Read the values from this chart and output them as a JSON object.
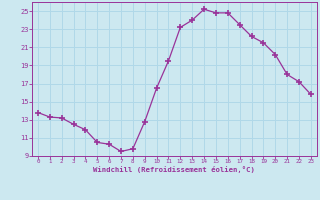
{
  "x": [
    0,
    1,
    2,
    3,
    4,
    5,
    6,
    7,
    8,
    9,
    10,
    11,
    12,
    13,
    14,
    15,
    16,
    17,
    18,
    19,
    20,
    21,
    22,
    23
  ],
  "y": [
    13.8,
    13.3,
    13.2,
    12.5,
    11.9,
    10.5,
    10.3,
    9.5,
    9.8,
    12.8,
    16.5,
    19.5,
    23.2,
    24.0,
    25.2,
    24.8,
    24.8,
    23.5,
    22.2,
    21.5,
    20.2,
    18.0,
    17.2,
    15.8
  ],
  "line_color": "#993399",
  "marker": "D",
  "marker_size": 2.5,
  "bg_color": "#cce8f0",
  "grid_color": "#b0d8e8",
  "axis_label_color": "#993399",
  "tick_color": "#993399",
  "xlabel": "Windchill (Refroidissement éolien,°C)",
  "xlim": [
    -0.5,
    23.5
  ],
  "ylim": [
    9,
    26
  ],
  "yticks": [
    9,
    11,
    13,
    15,
    17,
    19,
    21,
    23,
    25
  ],
  "xticks": [
    0,
    1,
    2,
    3,
    4,
    5,
    6,
    7,
    8,
    9,
    10,
    11,
    12,
    13,
    14,
    15,
    16,
    17,
    18,
    19,
    20,
    21,
    22,
    23
  ]
}
